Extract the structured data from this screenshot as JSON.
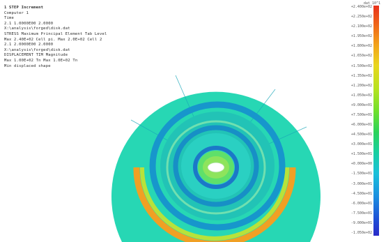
{
  "info_lines": [
    "1 STEP Increment",
    "Computer 1",
    "Time",
    "  2.1 1.0000E00 2.0000",
    "X:\\analysis\\forged\\disk.dat",
    "STRESS Maximum Principal Element Tab Level",
    "Max 2.40E+02 Cell pi. Max 2.0E+02 Cell 2",
    "  2.1 2.0000E00 2.0000",
    "X:\\analysis\\forged\\disk.dat",
    "DISPLACEMENT TIM Magnitude",
    "Max 1.00E+02 Tn  Max 1.0E+02 Tn",
    "Min displaced shape"
  ],
  "legend": {
    "title": "dat 10^1",
    "ticks": [
      "+2.400e+02",
      "+2.250e+02",
      "+2.100e+02",
      "+1.950e+02",
      "+1.800e+02",
      "+1.650e+02",
      "+1.500e+02",
      "+1.350e+02",
      "+1.200e+02",
      "+1.050e+02",
      "+9.000e+01",
      "+7.500e+01",
      "+6.000e+01",
      "+4.500e+01",
      "+3.000e+01",
      "+1.500e+01",
      "+0.000e+00",
      "-1.500e+01",
      "-3.000e+01",
      "-4.500e+01",
      "-6.000e+01",
      "-7.500e+01",
      "-9.000e+01",
      "-1.050e+02"
    ]
  },
  "colors": {
    "outer": "#27d7b4",
    "ring_blue": "#1796cc",
    "ring_teal": "#22c3b6",
    "hot": "#f0a024",
    "inner": "#5fe06a",
    "hole": "#ffffff"
  }
}
